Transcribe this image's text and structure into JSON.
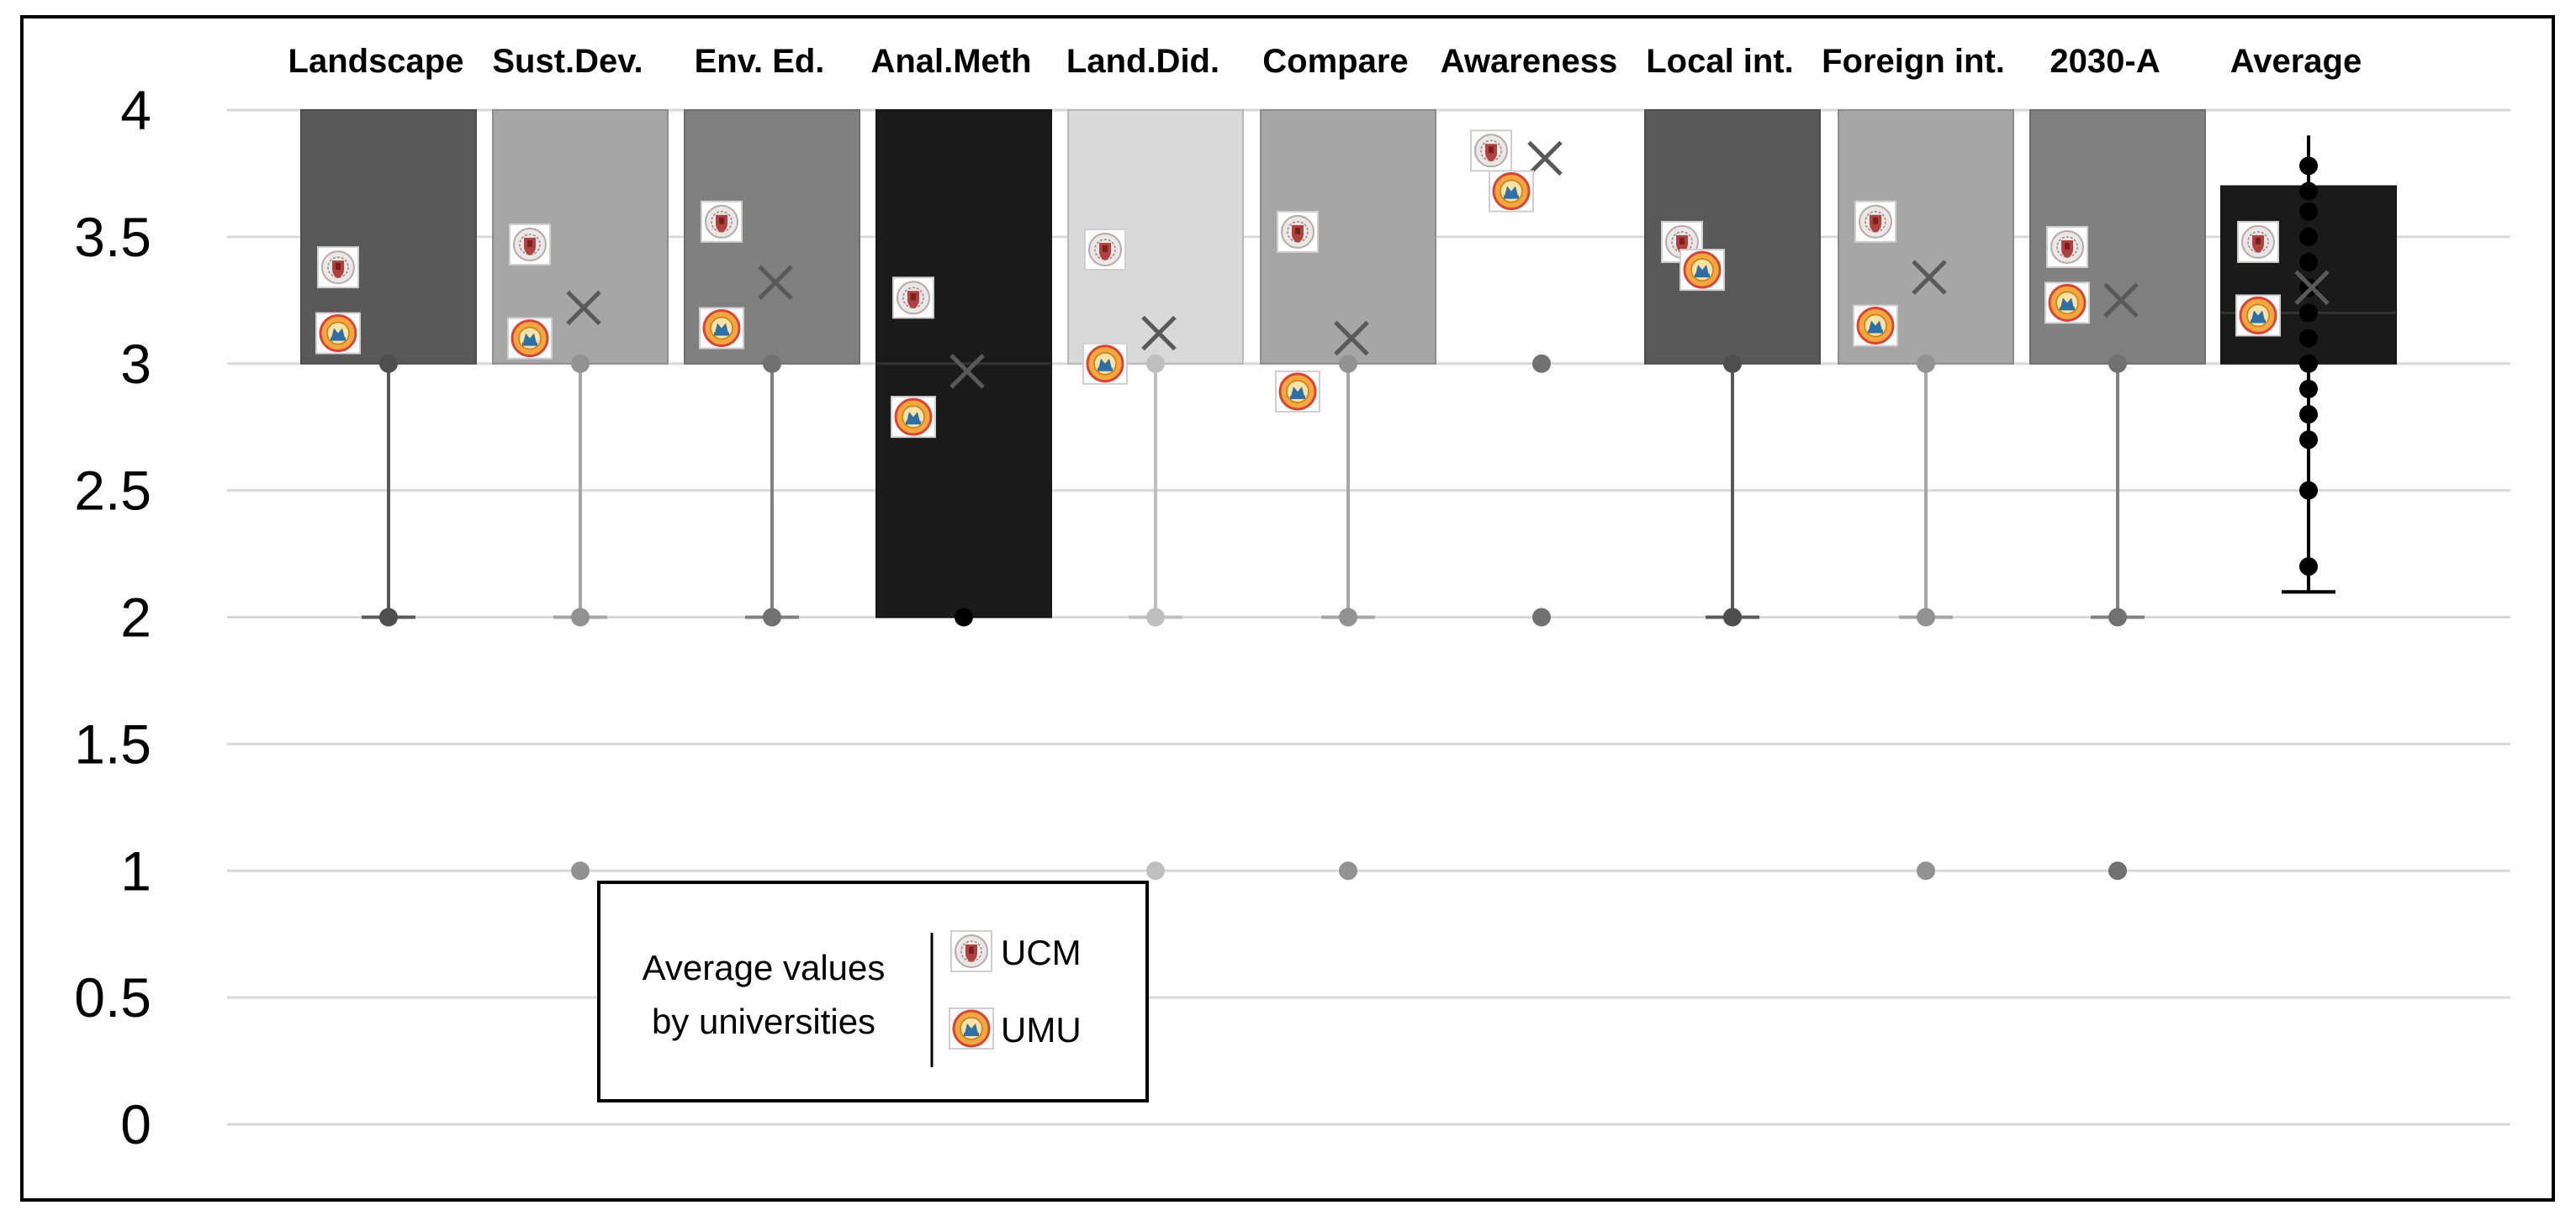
{
  "chart_data": {
    "type": "box",
    "title": "",
    "xlabel": "",
    "ylabel": "",
    "ylim": [
      0,
      4
    ],
    "grid": true,
    "y_ticks": [
      "0",
      "0.5",
      "1",
      "1.5",
      "2",
      "2.5",
      "3",
      "3.5",
      "4"
    ],
    "colors": {
      "frame": "#000000",
      "grid": "#d9d9d9",
      "mean_marker": "#595959",
      "ucm_marker": "#c0504d",
      "umu_marker": "#f2a93b"
    },
    "series": [
      {
        "name": "Landscape",
        "color": "#595959",
        "box_bottom": 3,
        "box_top": 4,
        "whisker_low": 2,
        "whisker_high": 3,
        "mean": 3.17,
        "outliers": [],
        "points": [
          2,
          3
        ],
        "ucm": 3.38,
        "umu": 3.12
      },
      {
        "name": "Sust.Dev.",
        "color": "#a6a6a6",
        "box_bottom": 3,
        "box_top": 4,
        "whisker_low": 2,
        "whisker_high": 3,
        "mean": 3.22,
        "outliers": [
          1
        ],
        "points": [
          2,
          3
        ],
        "ucm": 3.47,
        "umu": 3.1
      },
      {
        "name": "Env. Ed.",
        "color": "#808080",
        "box_bottom": 3,
        "box_top": 4,
        "whisker_low": 2,
        "whisker_high": 3,
        "mean": 3.32,
        "outliers": [],
        "points": [
          2,
          3
        ],
        "ucm": 3.56,
        "umu": 3.14
      },
      {
        "name": "Anal.Meth",
        "color": "#1a1a1a",
        "box_bottom": 2,
        "box_top": 4,
        "whisker_low": 2,
        "whisker_high": 4,
        "mean": 2.97,
        "median": 3,
        "outliers": [],
        "points": [
          2
        ],
        "ucm": 3.26,
        "umu": 2.79
      },
      {
        "name": "Land.Did.",
        "color": "#d9d9d9",
        "box_bottom": 3,
        "box_top": 4,
        "whisker_low": 2,
        "whisker_high": 3,
        "mean": 3.12,
        "outliers": [
          1
        ],
        "points": [
          2,
          3
        ],
        "ucm": 3.45,
        "umu": 3.0
      },
      {
        "name": "Compare",
        "color": "#a6a6a6",
        "box_bottom": 3,
        "box_top": 4,
        "whisker_low": 2,
        "whisker_high": 3,
        "mean": 3.1,
        "outliers": [
          1
        ],
        "points": [
          2,
          3
        ],
        "ucm": 3.52,
        "umu": 2.89
      },
      {
        "name": "Awareness",
        "color": "#808080",
        "box_bottom": 4,
        "box_top": 4,
        "whisker_low": 4,
        "whisker_high": 4,
        "mean": 3.81,
        "outliers": [
          2,
          3
        ],
        "points": [],
        "ucm": 3.84,
        "umu": 3.68
      },
      {
        "name": "Local  int.",
        "color": "#595959",
        "box_bottom": 3,
        "box_top": 4,
        "whisker_low": 2,
        "whisker_high": 3,
        "mean": 3.5,
        "outliers": [],
        "points": [
          2,
          3
        ],
        "ucm": 3.48,
        "umu": 3.37
      },
      {
        "name": "Foreign int.",
        "color": "#a6a6a6",
        "box_bottom": 3,
        "box_top": 4,
        "whisker_low": 2,
        "whisker_high": 3,
        "mean": 3.34,
        "outliers": [
          1
        ],
        "points": [
          2,
          3
        ],
        "ucm": 3.56,
        "umu": 3.15
      },
      {
        "name": "2030-A",
        "color": "#808080",
        "box_bottom": 3,
        "box_top": 4,
        "whisker_low": 2,
        "whisker_high": 3,
        "mean": 3.25,
        "outliers": [
          1
        ],
        "points": [
          2,
          3
        ],
        "ucm": 3.46,
        "umu": 3.24
      },
      {
        "name": "Average",
        "color": "#1a1a1a",
        "box_bottom": 3,
        "box_top": 3.7,
        "whisker_low": 2.1,
        "whisker_high": 3.9,
        "mean": 3.3,
        "median": 3.2,
        "outliers": [],
        "points": [
          3.78,
          3.68,
          3.6,
          3.5,
          3.4,
          3.3,
          3.2,
          3.1,
          3.0,
          2.9,
          2.8,
          2.7,
          2.5,
          2.2
        ],
        "ucm": 3.48,
        "umu": 3.19
      }
    ],
    "legend": {
      "title_line1": "Average values",
      "title_line2": "by universities",
      "entries": [
        {
          "label": "UCM",
          "icon": "ucm-seal-icon"
        },
        {
          "label": "UMU",
          "icon": "umu-seal-icon"
        }
      ]
    }
  }
}
